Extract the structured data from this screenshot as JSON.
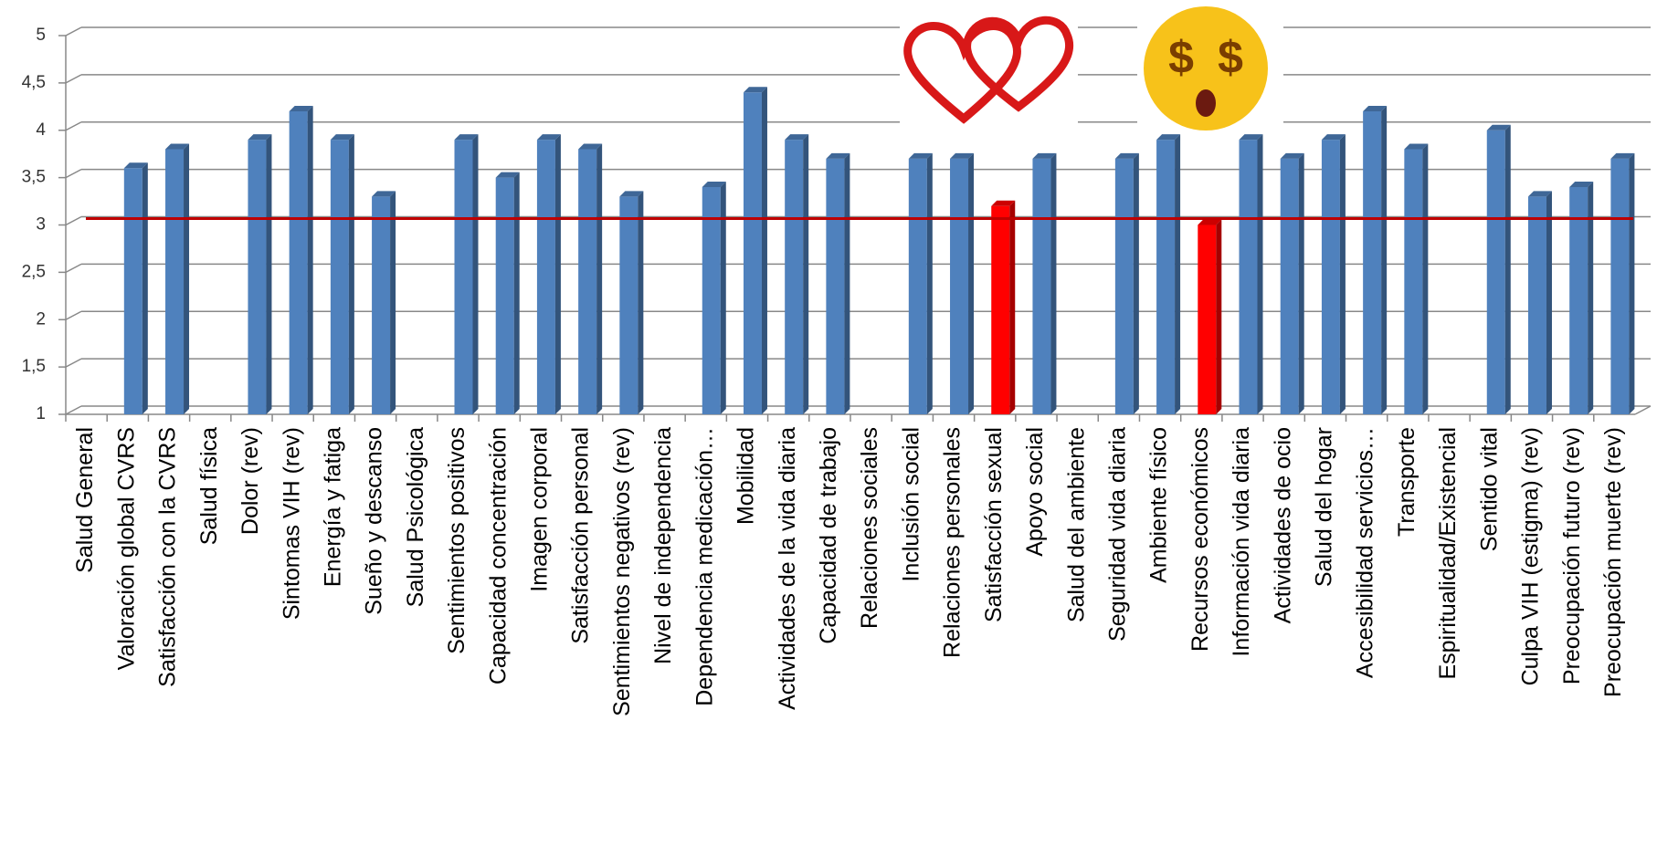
{
  "chart_data": {
    "type": "bar",
    "categories": [
      "Salud General",
      "Valoración global CVRS",
      "Satisfacción con la CVRS",
      "Salud física",
      "Dolor (rev)",
      "Sintomas VIH (rev)",
      "Energía y fatiga",
      "Sueño y descanso",
      "Salud Psicológica",
      "Sentimientos positivos",
      "Capacidad concentración",
      "Imagen corporal",
      "Satisfacción personal",
      "Sentimientos negativos (rev)",
      "Nivel de independencia",
      "Dependencia medicación…",
      "Mobilidad",
      "Actividades de la vida diaria",
      "Capacidad de trabajo",
      "Relaciones sociales",
      "Inclusión social",
      "Relaciones personales",
      "Satisfacción sexual",
      "Apoyo social",
      "Salud del ambiente",
      "Seguridad vida diaria",
      "Ambiente físico",
      "Recursos económicos",
      "Información vida diaria",
      "Actividades de ocio",
      "Salud del hogar",
      "Accesibilidad servicios…",
      "Transporte",
      "Espiritualidad/Existencial",
      "Sentido vital",
      "Culpa VIH (estigma) (rev)",
      "Preocupación futuro (rev)",
      "Preocupación muerte (rev)"
    ],
    "values": [
      null,
      3.6,
      3.8,
      null,
      3.9,
      4.2,
      3.9,
      3.3,
      null,
      3.9,
      3.5,
      3.9,
      3.8,
      3.3,
      null,
      3.4,
      4.4,
      3.9,
      3.7,
      null,
      3.7,
      3.7,
      3.2,
      3.7,
      null,
      3.7,
      3.9,
      3.0,
      3.9,
      3.7,
      3.9,
      4.2,
      3.8,
      null,
      4.0,
      3.3,
      3.4,
      3.7
    ],
    "colors": [
      "#4f81bd",
      "#4f81bd",
      "#4f81bd",
      "#4f81bd",
      "#4f81bd",
      "#4f81bd",
      "#4f81bd",
      "#4f81bd",
      "#4f81bd",
      "#4f81bd",
      "#4f81bd",
      "#4f81bd",
      "#4f81bd",
      "#4f81bd",
      "#4f81bd",
      "#4f81bd",
      "#4f81bd",
      "#4f81bd",
      "#4f81bd",
      "#4f81bd",
      "#4f81bd",
      "#4f81bd",
      "#ff0000",
      "#4f81bd",
      "#4f81bd",
      "#4f81bd",
      "#4f81bd",
      "#ff0000",
      "#4f81bd",
      "#4f81bd",
      "#4f81bd",
      "#4f81bd",
      "#4f81bd",
      "#4f81bd",
      "#4f81bd",
      "#4f81bd",
      "#4f81bd",
      "#4f81bd"
    ],
    "ylim": [
      1,
      5
    ],
    "yticks": [
      1,
      {
        "value": 1.5,
        "label": "1,5"
      },
      2,
      {
        "value": 2.5,
        "label": "2,5"
      },
      3,
      {
        "value": 3.5,
        "label": "3,5"
      },
      4,
      {
        "value": 4.5,
        "label": "4,5"
      },
      5
    ],
    "grid": true,
    "reference_line": {
      "value": 3,
      "color": "#c00000"
    }
  }
}
